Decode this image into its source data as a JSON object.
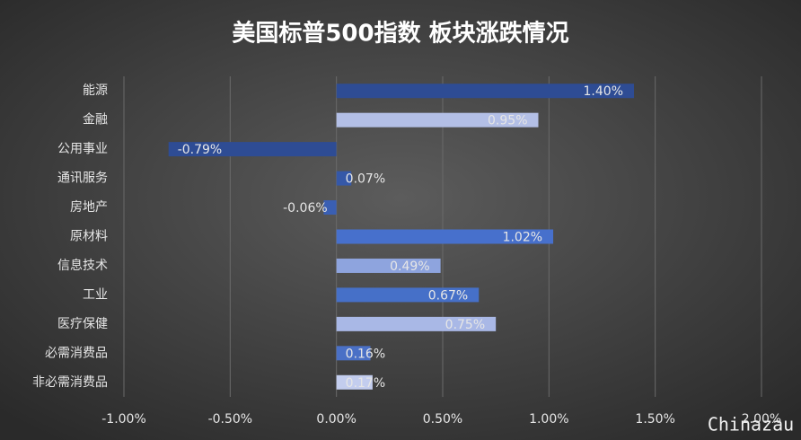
{
  "chart_data": {
    "type": "barh",
    "title": "美国标普500指数 板块涨跌情况",
    "categories": [
      "能源",
      "金融",
      "公用事业",
      "通讯服务",
      "房地产",
      "原材料",
      "信息技术",
      "工业",
      "医疗保健",
      "必需消费品",
      "非必需消费品"
    ],
    "values": [
      1.4,
      0.95,
      -0.79,
      0.07,
      -0.06,
      1.02,
      0.49,
      0.67,
      0.75,
      0.16,
      0.17
    ],
    "value_labels": [
      "1.40%",
      "0.95%",
      "-0.79%",
      "0.07%",
      "-0.06%",
      "1.02%",
      "0.49%",
      "0.67%",
      "0.75%",
      "0.16%",
      "0.17%"
    ],
    "colors": [
      "#2e4c94",
      "#b3bfe6",
      "#2e4c94",
      "#3558a8",
      "#3a5fb3",
      "#4770cc",
      "#8ea4de",
      "#4670c8",
      "#a9b8e6",
      "#4a70c6",
      "#c3cdee"
    ],
    "xlim": [
      -1,
      2
    ],
    "xticks": [
      {
        "value": -1,
        "label": "-1.00%"
      },
      {
        "value": -0.5,
        "label": "-0.50%"
      },
      {
        "value": 0,
        "label": "0.00%"
      },
      {
        "value": 0.5,
        "label": "0.50%"
      },
      {
        "value": 1,
        "label": "1.00%"
      },
      {
        "value": 1.5,
        "label": "1.50%"
      },
      {
        "value": 2,
        "label": "2.00%"
      }
    ],
    "grid": true,
    "watermark": "Chinazau"
  }
}
